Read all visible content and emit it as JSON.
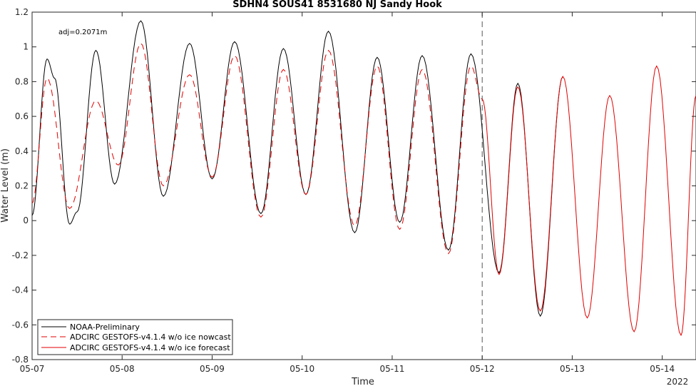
{
  "chart_data": {
    "type": "line",
    "title": "SDHN4 SOUS41 8531680 NJ Sandy Hook",
    "xlabel": "Time",
    "ylabel": "Water Level (m)",
    "year_label": "2022",
    "annotation": "adj=0.2071m",
    "xlim": [
      "2022-05-07 00:00",
      "2022-05-14 09:00"
    ],
    "ylim": [
      -0.8,
      1.2
    ],
    "x_tick_labels": [
      "05-07",
      "05-08",
      "05-09",
      "05-10",
      "05-11",
      "05-12",
      "05-13",
      "05-14"
    ],
    "y_ticks": [
      -0.8,
      -0.6,
      -0.4,
      -0.2,
      0,
      0.2,
      0.4,
      0.6,
      0.8,
      1,
      1.2
    ],
    "y_tick_labels": [
      "-0.8",
      "-0.6",
      "-0.4",
      "-0.2",
      "0",
      "0.2",
      "0.4",
      "0.6",
      "0.8",
      "1",
      "1.2"
    ],
    "nowcast_forecast_boundary": "2022-05-12 00:00",
    "grid": false,
    "legend_position": "bottom-left",
    "series": [
      {
        "name": "NOAA-Preliminary",
        "color": "#000000",
        "style": "solid",
        "x": [
          "05-07 00:00",
          "05-07 04:00",
          "05-07 06:00",
          "05-07 10:00",
          "05-07 12:00",
          "05-07 17:00",
          "05-07 22:00",
          "05-08 05:00",
          "05-08 11:00",
          "05-08 18:00",
          "05-09 00:00",
          "05-09 06:00",
          "05-09 13:00",
          "05-09 19:00",
          "05-10 01:00",
          "05-10 07:00",
          "05-10 14:00",
          "05-10 20:00",
          "05-11 02:00",
          "05-11 08:00",
          "05-11 15:00",
          "05-11 21:00",
          "05-12 04:30",
          "05-12 09:30",
          "05-12 15:30",
          "05-12 21:30"
        ],
        "y": [
          0.03,
          0.93,
          0.82,
          -0.02,
          0.05,
          0.98,
          0.21,
          1.15,
          0.14,
          1.02,
          0.24,
          1.03,
          0.04,
          0.99,
          0.15,
          1.09,
          -0.07,
          0.94,
          -0.01,
          0.95,
          -0.17,
          0.96,
          -0.3,
          0.79,
          -0.55,
          0.83
        ]
      },
      {
        "name": "ADCIRC GESTOFS-v4.1.4 w/o ice nowcast",
        "color": "#e00000",
        "style": "dashed",
        "x": [
          "05-07 00:00",
          "05-07 04:00",
          "05-07 10:00",
          "05-07 17:00",
          "05-07 23:00",
          "05-08 05:00",
          "05-08 11:00",
          "05-08 18:00",
          "05-09 00:00",
          "05-09 06:00",
          "05-09 13:00",
          "05-09 19:00",
          "05-10 01:00",
          "05-10 07:00",
          "05-10 14:00",
          "05-10 20:00",
          "05-11 02:00",
          "05-11 08:00",
          "05-11 15:00",
          "05-11 21:00",
          "05-12 00:00"
        ],
        "y": [
          0.1,
          0.82,
          0.07,
          0.69,
          0.32,
          1.02,
          0.2,
          0.84,
          0.25,
          0.95,
          0.02,
          0.87,
          0.15,
          0.98,
          -0.03,
          0.89,
          -0.05,
          0.87,
          -0.19,
          0.89,
          0.7
        ]
      },
      {
        "name": "ADCIRC GESTOFS-v4.1.4 w/o ice forecast",
        "color": "#e00000",
        "style": "solid",
        "x": [
          "05-12 00:00",
          "05-12 04:30",
          "05-12 09:30",
          "05-12 15:30",
          "05-12 21:30",
          "05-13 04:00",
          "05-13 10:00",
          "05-13 16:30",
          "05-13 22:30",
          "05-14 05:00",
          "05-14 09:00"
        ],
        "y": [
          0.7,
          -0.31,
          0.77,
          -0.52,
          0.83,
          -0.56,
          0.72,
          -0.64,
          0.89,
          -0.66,
          0.72
        ]
      }
    ]
  }
}
